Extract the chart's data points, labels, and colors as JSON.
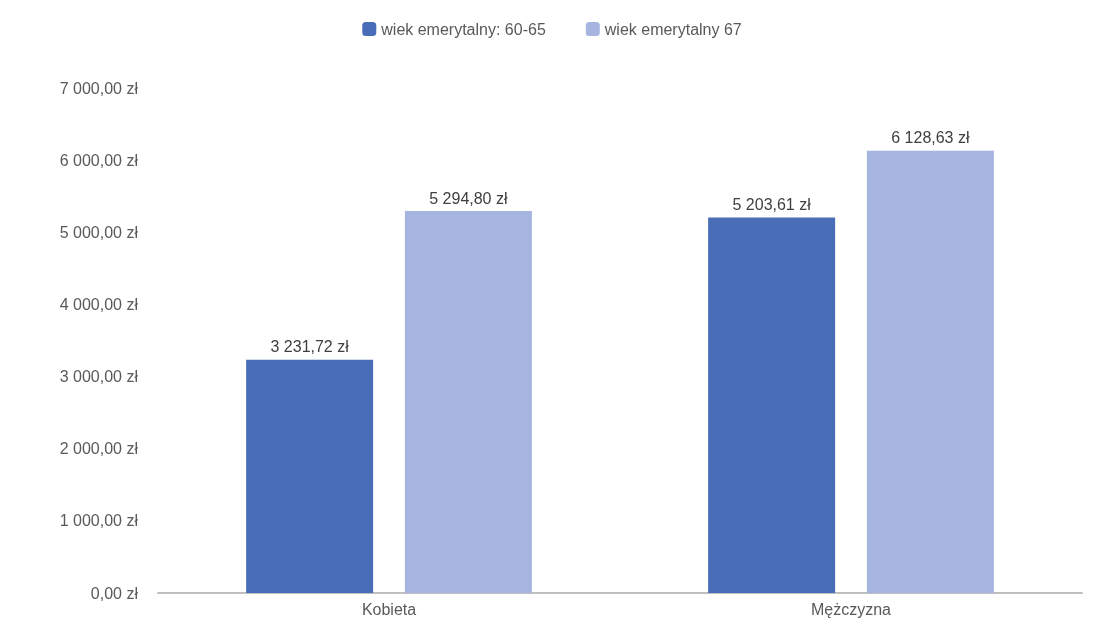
{
  "chart_data": {
    "type": "bar",
    "categories": [
      "Kobieta",
      "Mężczyzna"
    ],
    "series": [
      {
        "name": "wiek emerytalny: 60-65",
        "color": "#4a6db8",
        "values": [
          3231.72,
          5203.61
        ],
        "value_labels": [
          "3 231,72 zł",
          "5 203,61 zł"
        ]
      },
      {
        "name": "wiek emerytalny 67",
        "color": "#a5b5e0",
        "values": [
          5294.8,
          6128.63
        ],
        "value_labels": [
          "5 294,80 zł",
          "6 128,63 zł"
        ]
      }
    ],
    "ylim": [
      0,
      7000
    ],
    "yticks": [
      {
        "value": 0,
        "label": "0,00 zł"
      },
      {
        "value": 1000,
        "label": "1 000,00 zł"
      },
      {
        "value": 2000,
        "label": "2 000,00 zł"
      },
      {
        "value": 3000,
        "label": "3 000,00 zł"
      },
      {
        "value": 4000,
        "label": "4 000,00 zł"
      },
      {
        "value": 5000,
        "label": "5 000,00 zł"
      },
      {
        "value": 6000,
        "label": "6 000,00 zł"
      },
      {
        "value": 7000,
        "label": "7 000,00 zł"
      }
    ],
    "grid": false,
    "legend": "top"
  }
}
